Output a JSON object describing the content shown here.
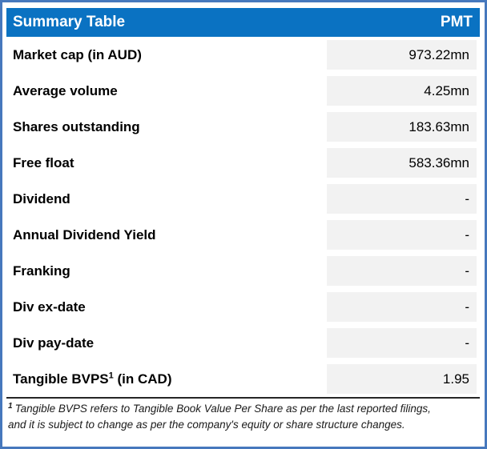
{
  "header": {
    "title": "Summary Table",
    "ticker": "PMT"
  },
  "rows": [
    {
      "label": "Market cap (in AUD)",
      "value": "973.22mn"
    },
    {
      "label": "Average volume",
      "value": "4.25mn"
    },
    {
      "label": "Shares outstanding",
      "value": "183.63mn"
    },
    {
      "label": "Free float",
      "value": "583.36mn"
    },
    {
      "label": "Dividend",
      "value": "-"
    },
    {
      "label": "Annual Dividend Yield",
      "value": "-"
    },
    {
      "label": "Franking",
      "value": "-"
    },
    {
      "label": "Div ex-date",
      "value": "-"
    },
    {
      "label": "Div pay-date",
      "value": "-"
    },
    {
      "label": "Tangible BVPS",
      "label_sup": "1",
      "label_suffix": " (in CAD)",
      "value": "1.95"
    }
  ],
  "footnote": {
    "marker": "1",
    "line1": "Tangible BVPS refers to Tangible Book Value Per Share as per the last reported filings,",
    "line2": "and it is subject to change as per the company's equity or share structure changes."
  },
  "colors": {
    "header_blue": "#0A72C2",
    "border_blue": "#4678BD",
    "value_cell_gray": "#F2F2F2",
    "separator_dark": "#262626",
    "header_text": "#FFFFFF",
    "body_text": "#000000"
  },
  "chart_data": {
    "type": "table",
    "title": "Summary Table",
    "column_headers": [
      "Summary Table",
      "PMT"
    ],
    "rows": [
      [
        "Market cap (in AUD)",
        "973.22mn"
      ],
      [
        "Average volume",
        "4.25mn"
      ],
      [
        "Shares outstanding",
        "183.63mn"
      ],
      [
        "Free float",
        "583.36mn"
      ],
      [
        "Dividend",
        "-"
      ],
      [
        "Annual Dividend Yield",
        "-"
      ],
      [
        "Franking",
        "-"
      ],
      [
        "Div ex-date",
        "-"
      ],
      [
        "Div pay-date",
        "-"
      ],
      [
        "Tangible BVPS¹ (in CAD)",
        "1.95"
      ]
    ],
    "footnote": "¹ Tangible BVPS refers to Tangible Book Value Per Share as per the last reported filings, and it is subject to change as per the company's equity or share structure changes."
  }
}
